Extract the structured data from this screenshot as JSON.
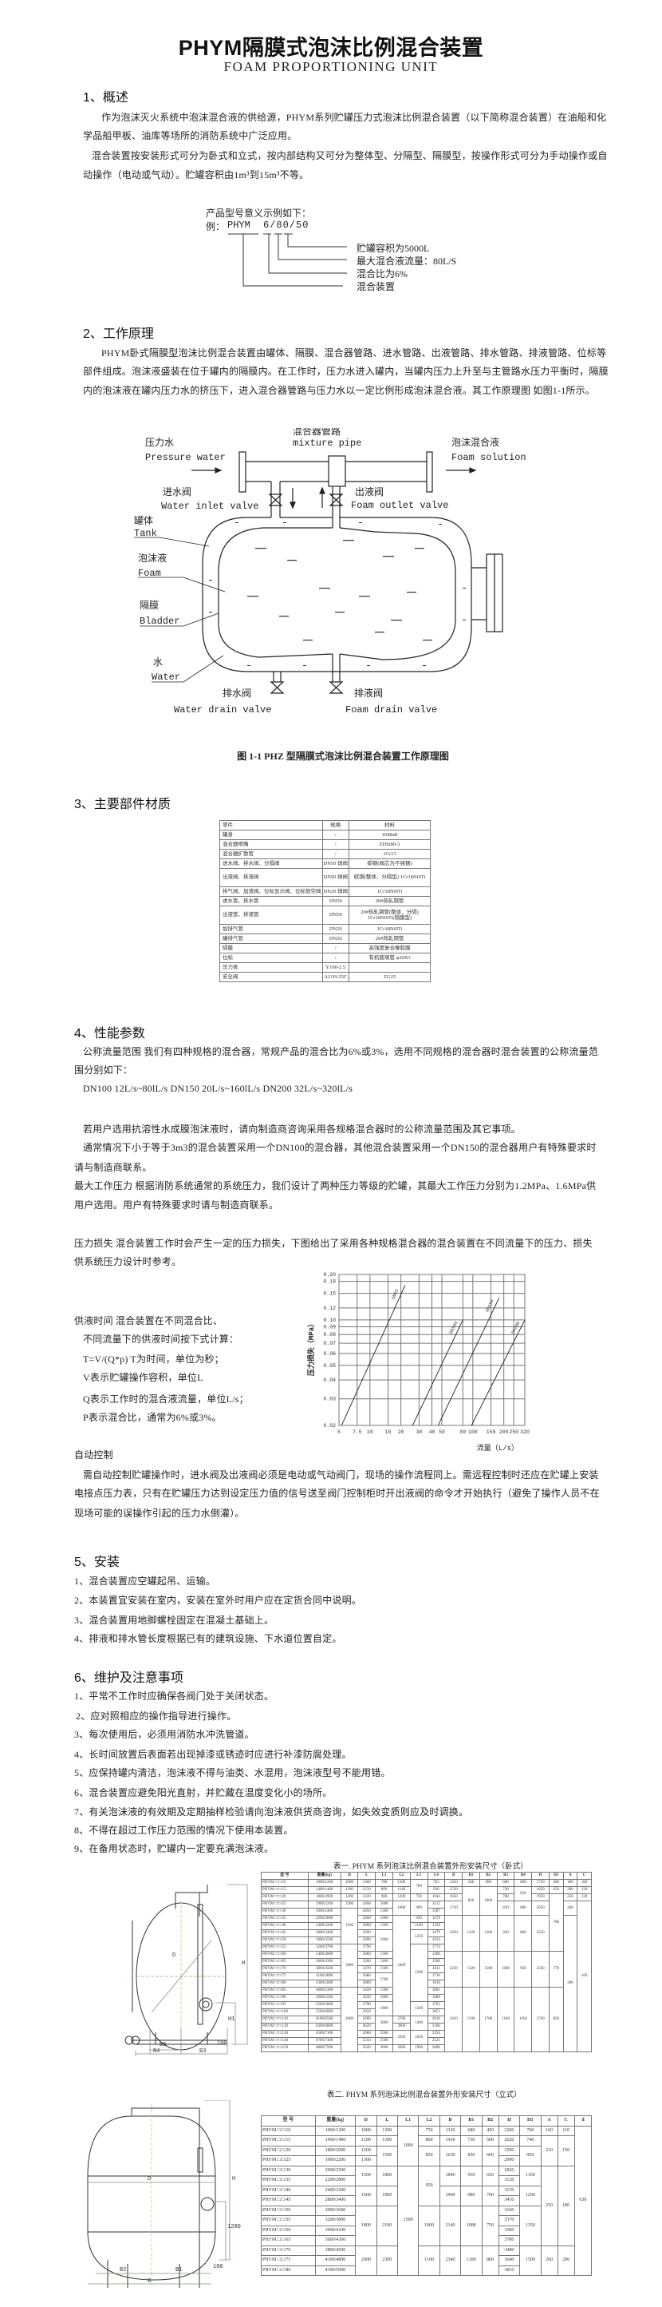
{
  "header": {
    "title": "PHYM隔膜式泡沫比例混合装置",
    "subtitle": "FOAM PROPORTIONING UNIT"
  },
  "s1": {
    "heading": "1、概述",
    "lines": [
      "作为泡沫灭火系统中泡沫混合液的供给源，PHYM系列贮罐压力式泡沫比例混合装置（以下简称混合装置）在油船和化",
      "学品船甲板、油库等场所的消防系统中广泛应用。",
      "混合装置按安装形式可分为卧式和立式，按内部结构又可分为整体型、分隔型、隔膜型，按操作形式可分为手动操作或自",
      "动操作（电动或气动）。贮罐容积由1m³到15m³不等。"
    ],
    "model": {
      "intro": "产品型号意义示例如下：",
      "prefix": "例：",
      "code_a": "PHYM",
      "code_b": "6/80/50",
      "labels": [
        "贮罐容积为5000L",
        "最大混合液流量：80L/S",
        "混合比为6%",
        "混合装置"
      ]
    }
  },
  "s2": {
    "heading": "2、工作原理",
    "lines": [
      "PHYM卧式隔膜型泡沫比例混合装置由罐体、隔膜、混合器管路、进水管路、出液管路、排水管路、排液管路、位标等",
      "部件组成。泡沫液盛装在位于罐内的隔膜内。在工作时，压力水进入罐内，当罐内压力上升至与主管路水压力平衡时，隔膜",
      "内的泡沫液在罐内压力水的挤压下，进入混合器管路与压力水以一定比例形成泡沫混合液。其工作原理图 如图1-1所示。"
    ],
    "diagram": {
      "pressure_water_cn": "压力水",
      "pressure_water_en": "Pressure water",
      "mixture_pipe_cn": "混合器管路",
      "mixture_pipe_en": "mixture pipe",
      "foam_solution_cn": "泡沫混合液",
      "foam_solution_en": "Foam solution",
      "inlet_valve_cn": "进水阀",
      "inlet_valve_en": "Water inlet valve",
      "outlet_valve_cn": "出液阀",
      "outlet_valve_en": "Foam outlet valve",
      "tank_cn": "罐体",
      "tank_en": "Tank",
      "foam_cn": "泡沫液",
      "foam_en": "Foam",
      "bladder_cn": "隔膜",
      "bladder_en": "Bladder",
      "water_cn": "水",
      "water_en": "Water",
      "water_drain_cn": "排水阀",
      "water_drain_en": "Water drain valve",
      "foam_drain_cn": "排液阀",
      "foam_drain_en": "Foam drain valve",
      "caption": "图 1-1 PHZ 型隔膜式泡沫比例混合装置工作原理图"
    }
  },
  "s3": {
    "heading": "3、主要部件材质",
    "table": {
      "header": [
        "零件",
        "规格",
        "材料"
      ],
      "rows": [
        [
          "罐身",
          "/",
          "16MnR"
        ],
        [
          "混合器喷嘴",
          "/",
          "ZHSi80-3"
        ],
        [
          "混合器扩散管",
          "/",
          "1Cr13"
        ],
        [
          "进水阀、排水阀、分隔阀",
          "DN50 球阀",
          "碳钢(阀芯为不锈钢)"
        ],
        [
          "出液阀、排液阀",
          "DN50 球阀",
          "碳钢(整体、分隔型) 1Cr18Ni9Ti"
        ],
        [
          "排气阀、加液阀、位标显示阀、位标放空阀",
          "DN20 球阀",
          "1Cr18Ni9Ti"
        ],
        [
          "进水管、排水管",
          "DN50",
          "20#热轧钢管"
        ],
        [
          "出液管、排液管",
          "DN50",
          "20#热轧钢管(整体、分隔) 1Cr18Ni9Ti(隔膜型)"
        ],
        [
          "加排气管",
          "DN20",
          "1Cr18Ni9Ti"
        ],
        [
          "罐排气管",
          "DN20",
          "20#热轧钢管"
        ],
        [
          "隔膜",
          "/",
          "高强度复合橡胶膜"
        ],
        [
          "位标",
          "/",
          "有机玻璃管 φ20X3"
        ],
        [
          "压力表",
          "Y100-2.5",
          ""
        ],
        [
          "安全阀",
          "A21H-25C",
          "ZG25"
        ]
      ]
    }
  },
  "s4": {
    "heading": "4、性能参数",
    "flow_lines": [
      "公称流量范围  我们有四种规格的混合器，常规产品的混合比为6%或3%，选用不同规格的混合器时混合装置的公称流量范",
      "围分别如下：",
      "DN100  12L/s~80lL/s   DN150  20L/s~160lL/s   DN200  32L/s~320lL/s"
    ],
    "note_lines": [
      "若用户选用抗溶性水成膜泡沫液时，请向制造商咨询采用各规格混合器时的公称流量范围及其它事项。",
      "通常情况下小于等于3m3的混合装置采用一个DN100的混合器，其他混合装置采用一个DN150的混合器用户有特殊要求时",
      "请与制造商联系。"
    ],
    "pressure_lines": [
      "最大工作压力  根据消防系统通常的系统压力，我们设计了两种压力等级的贮罐，其最大工作压力分别为1.2MPa、1.6MPa供",
      "用户选用。用户有特殊要求时请与制造商联系。"
    ],
    "loss_lines": [
      "压力损失  混合装置工作时会产生一定的压力损失，下图给出了采用各种规格混合器的混合装置在不同流量下的压力、损失",
      "供系统压力设计时参考。"
    ],
    "supply_lines": [
      "供液时间  混合装置在不同混合比、",
      "不同流量下的供液时间按下式计算：",
      "T=V/(Q*p)     T为时间，单位为秒；",
      "V表示贮罐操作容积，单位L",
      "Q表示工作时的混合液流量，单位L/s；",
      "P表示混合比，通常为6%或3%。"
    ],
    "auto_heading": "自动控制",
    "auto_lines": [
      "需自动控制贮罐操作时，进水阀及出液阀必须是电动或气动阀门，现场的操作流程同上。需远程控制时还应在贮罐上安装",
      "电接点压力表，只有在贮罐压力达到设定压力值的信号送至阀门控制柜时开出液阀的命令才开始执行（避免了操作人员不在",
      "现场可能的误操作引起的压力水倒灌）。"
    ]
  },
  "chart_data": {
    "type": "line",
    "xlabel": "流量（L/s）",
    "ylabel": "压力损失（MPa）",
    "x_scale": "log",
    "y_scale": "log",
    "xlim": [
      5,
      320
    ],
    "ylim": [
      0.02,
      0.2
    ],
    "x_ticks": [
      "5",
      "7.5",
      "10",
      "15",
      "20",
      "30",
      "40",
      "50",
      "80",
      "100",
      "150",
      "200",
      "250",
      "320"
    ],
    "x_tick_values": [
      5,
      7.5,
      10,
      15,
      20,
      30,
      40,
      50,
      80,
      100,
      150,
      200,
      250,
      320
    ],
    "y_ticks": [
      "0.02",
      "0.03",
      "0.04",
      "0.05",
      "0.06",
      "0.07",
      "0.08",
      "0.09",
      "0.10",
      "0.12",
      "0.15",
      "0.18",
      "0.20"
    ],
    "y_tick_values": [
      0.02,
      0.03,
      0.04,
      0.05,
      0.06,
      0.07,
      0.08,
      0.09,
      0.1,
      0.12,
      0.15,
      0.18,
      0.2
    ],
    "grid": true,
    "series": [
      {
        "name": "DN65",
        "points": [
          [
            5.3,
            0.02
          ],
          [
            22,
            0.17
          ]
        ]
      },
      {
        "name": "DN100",
        "points": [
          [
            26,
            0.02
          ],
          [
            80,
            0.1
          ]
        ]
      },
      {
        "name": "DN150",
        "points": [
          [
            46,
            0.02
          ],
          [
            180,
            0.14
          ]
        ]
      },
      {
        "name": "DN200",
        "points": [
          [
            97,
            0.02
          ],
          [
            320,
            0.1
          ]
        ]
      }
    ]
  },
  "s5": {
    "heading": "5、安装",
    "items": [
      "1、混合装置应空罐起吊、运输。",
      "2、本装置宜安装在室内，安装在室外时用户应在定货合同中说明。",
      "3、混合装置用地脚螺栓固定在混凝土基础上。",
      "4、排液和排水管长度根据已有的建筑设施、下水道位置自定。"
    ]
  },
  "s6": {
    "heading": "6、维护及注意事项",
    "items": [
      "1、平常不工作时应确保各阀门处于关闭状态。",
      "2、应对照相应的操作指导进行操作。",
      "3、每次使用后，必须用消防水冲洗管道。",
      "4、长时间放置后表面若出现掉漆或锈迹时应进行补漆防腐处理。",
      "5、应保持罐内清洁，泡沫液不得与油类、水混用，泡沫液型号不能用错。",
      "6、混合装置应避免阳光直射，并贮藏在温度变化小的场所。",
      "7、有关泡沫液的有效期及定期抽样检验请向泡沫液供货商咨询，如失效变质则应及时调换。",
      "8、不得在超过工作压力范围的情况下使用本装置。",
      "9、在备用状态时，贮罐内一定要充满泡沫液。"
    ]
  },
  "table1": {
    "caption": "表一. PHYM 系列泡沫比例混合装置外形安装尺寸（卧式）",
    "drawing_labels": [
      "D",
      "H",
      "H1",
      "B",
      "B3",
      "B4",
      "B5",
      "100"
    ],
    "header": [
      "型  号",
      "重量(kg)",
      "D",
      "L",
      "L1",
      "L2",
      "L3",
      "L4",
      "B",
      "B1",
      "B2",
      "B3",
      "B4",
      "H",
      "H1",
      "A",
      "C"
    ],
    "rows": [
      [
        "PHYM □/□/10",
        "1000/1200",
        "1000",
        "1360",
        "700",
        "1100",
        "700",
        "763",
        "1450",
        "240",
        "900",
        "680",
        "600",
        "1750",
        "600",
        "180",
        "100"
      ],
      [
        "PHYM □/□/15",
        "1400/1400",
        "1100",
        "2150",
        "800",
        "1140",
        null,
        "930",
        "1550",
        "820",
        "1000",
        "730",
        "650",
        "1850",
        "650",
        "200",
        "120"
      ],
      [
        "PHYM □/□/20",
        "1800/2000",
        "1200",
        "2320",
        "900",
        "1200",
        "750",
        "1042",
        "1650",
        null,
        null,
        "780",
        null,
        "1950",
        "700",
        "250",
        "130"
      ],
      [
        "PHYM □/□/25",
        "1900/2200",
        "1300",
        "2460",
        "1000",
        "1600",
        "900",
        "1112",
        "1750",
        null,
        null,
        "830",
        "680",
        "2050",
        null,
        "260",
        "160"
      ],
      [
        "PHYM □/□/30",
        "2000/2400",
        "1500",
        "2850",
        "1300",
        null,
        null,
        "1307",
        null,
        null,
        null,
        null,
        null,
        null,
        null,
        null,
        null
      ],
      [
        "PHYM □/□/35",
        "2200/2800",
        null,
        "2600",
        "1000",
        "2400",
        "950",
        "1179",
        "1950",
        "1120",
        "1300",
        "930",
        "800",
        "2250",
        null,
        "280",
        null
      ],
      [
        "PHYM □/□/40",
        "2400/3200",
        null,
        "2900",
        "1300",
        null,
        "1100",
        "1329",
        null,
        null,
        null,
        null,
        null,
        null,
        null,
        null,
        null
      ],
      [
        "PHYM □/□/45",
        "2800/3400",
        null,
        "3200",
        "1600",
        null,
        "1250",
        "1479",
        null,
        null,
        null,
        null,
        null,
        null,
        null,
        null,
        null
      ],
      [
        "PHYM □/□/50",
        "3000/3500",
        null,
        "3490",
        null,
        null,
        null,
        "1624",
        null,
        null,
        null,
        null,
        null,
        null,
        null,
        null,
        null
      ],
      [
        "PHYM □/□/55",
        "3200/3700",
        "1800",
        "3790",
        null,
        null,
        "1200",
        "1774",
        null,
        null,
        null,
        null,
        null,
        null,
        null,
        null,
        null
      ],
      [
        "PHYM □/□/60",
        "3400/4000",
        null,
        "3060",
        "1300",
        null,
        null,
        "1406",
        "2250",
        "1320",
        "1500",
        "1080",
        "950",
        "2560",
        "770",
        null,
        null
      ],
      [
        "PHYM □/□/65",
        "3600/4300",
        null,
        "3260",
        "1400",
        null,
        null,
        "1506",
        null,
        null,
        null,
        null,
        null,
        null,
        null,
        null,
        null
      ],
      [
        "PHYM □/□/70",
        "3800/4500",
        null,
        "3470",
        "1500",
        null,
        null,
        "1611",
        null,
        null,
        null,
        null,
        null,
        null,
        null,
        null,
        null
      ],
      [
        "PHYM □/□/75",
        "4100/4800",
        null,
        "3680",
        "1700",
        null,
        null,
        "1716",
        null,
        null,
        null,
        null,
        null,
        null,
        null,
        null,
        null
      ],
      [
        "PHYM □/□/80",
        "4300/5000",
        null,
        "3880",
        null,
        null,
        null,
        "1816",
        null,
        null,
        null,
        null,
        null,
        null,
        null,
        null,
        null
      ],
      [
        "PHYM □/□/85",
        "4600/5300",
        "2000",
        "3450",
        "1500",
        null,
        null,
        "1601",
        "2450",
        "1500",
        "1700",
        "1180",
        "1050",
        "2760",
        "850",
        null,
        null
      ],
      [
        "PHYM □/□/90",
        "4900/5500",
        null,
        "3630",
        "1600",
        null,
        null,
        "1686",
        null,
        null,
        null,
        null,
        null,
        null,
        null,
        null,
        null
      ],
      [
        "PHYM □/□/95",
        "5200/5800",
        null,
        "3790",
        "1800",
        null,
        "1500",
        "1765",
        null,
        null,
        null,
        null,
        null,
        null,
        null,
        null,
        null
      ],
      [
        "PHYM □/□/100",
        "5500/6000",
        null,
        "3950",
        null,
        null,
        null,
        "1851",
        null,
        null,
        null,
        null,
        null,
        null,
        null,
        null,
        null
      ],
      [
        "PHYM □/□/110",
        "6100/6500",
        null,
        "4280",
        "2000",
        "2700",
        "1400",
        "2016",
        null,
        null,
        null,
        null,
        null,
        null,
        null,
        null,
        null
      ],
      [
        "PHYM □/□/120",
        "6300/6800",
        null,
        "4620",
        null,
        "3000",
        null,
        "2186",
        null,
        null,
        null,
        null,
        null,
        null,
        null,
        null,
        null
      ],
      [
        "PHYM □/□/130",
        "6500/7100",
        null,
        "4960",
        "2500",
        "3200",
        "1650",
        "2356",
        null,
        null,
        null,
        null,
        null,
        null,
        null,
        null,
        null
      ],
      [
        "PHYM □/□/140",
        "6700/7400",
        null,
        "5250",
        "2500",
        null,
        null,
        "2521",
        null,
        null,
        null,
        null,
        null,
        null,
        null,
        null,
        null
      ],
      [
        "PHYM □/□/150",
        "6800/7500",
        null,
        "5620",
        "3000",
        "3600",
        "1900",
        "2686",
        null,
        null,
        null,
        null,
        null,
        null,
        null,
        null,
        null
      ]
    ]
  },
  "table2": {
    "caption": "表二. PHYM 系列泡沫比例混合装置外形安装尺寸（立式）",
    "drawing_labels": [
      "D",
      "H",
      "B",
      "B1",
      "B2",
      "1200",
      "100"
    ],
    "header": [
      "型  号",
      "重量(kg)",
      "D",
      "L",
      "L1",
      "L2",
      "B",
      "B1",
      "B2",
      "H",
      "H1",
      "A",
      "C",
      "d"
    ],
    "rows": [
      [
        "PHYM □/□/10",
        "1000/1200",
        "1000",
        "1290",
        "1000",
        "750",
        "1330",
        "680",
        "450",
        "2290",
        "700",
        "160",
        "110",
        "630"
      ],
      [
        "PHYM □/□/15",
        "1400/1400",
        "1100",
        "1390",
        null,
        "800",
        "1430",
        "730",
        "500",
        "2620",
        "740",
        "210",
        "150",
        null
      ],
      [
        "PHYM □/□/20",
        "1800/2000",
        "1200",
        "1590",
        null,
        "850",
        "1630",
        "830",
        "600",
        "2590",
        "950",
        null,
        null,
        null
      ],
      [
        "PHYM □/□/25",
        "1900/2200",
        "1300",
        null,
        null,
        null,
        null,
        null,
        null,
        "2990",
        null,
        null,
        null,
        null
      ],
      [
        "PHYM □/□/30",
        "2000/2500",
        "1500",
        "1800",
        "1500",
        "950",
        "1840",
        "930",
        "650",
        "2820",
        "1100",
        "250",
        "180",
        null
      ],
      [
        "PHYM □/□/35",
        "2200/2800",
        null,
        null,
        null,
        null,
        null,
        null,
        null,
        "3120",
        null,
        null,
        null,
        null
      ],
      [
        "PHYM □/□/40",
        "2400/3200",
        "1600",
        "1900",
        null,
        null,
        "1940",
        "980",
        "700",
        "3150",
        "1200",
        null,
        null,
        null
      ],
      [
        "PHYM □/□/45",
        "2800/3400",
        null,
        null,
        null,
        null,
        null,
        null,
        null,
        "3410",
        null,
        null,
        null,
        null
      ],
      [
        "PHYM □/□/50",
        "3000/3600",
        "1800",
        "2100",
        null,
        "1000",
        "2140",
        "1080",
        "750",
        "3160",
        "1350",
        null,
        null,
        null
      ],
      [
        "PHYM □/□/55",
        "3200/3800",
        null,
        null,
        null,
        null,
        null,
        null,
        null,
        "3370",
        null,
        null,
        null,
        null
      ],
      [
        "PHYM □/□/60",
        "3400/4100",
        null,
        null,
        null,
        null,
        null,
        null,
        null,
        "3580",
        null,
        null,
        null,
        null
      ],
      [
        "PHYM □/□/65",
        "3600/4300",
        null,
        null,
        null,
        null,
        null,
        null,
        null,
        "3780",
        null,
        null,
        null,
        null
      ],
      [
        "PHYM □/□/70",
        "3800/4500",
        "2000",
        "2300",
        null,
        "1100",
        "2340",
        "1180",
        "800",
        "3480",
        "1500",
        "260",
        "200",
        null
      ],
      [
        "PHYM □/□/75",
        "4100/4800",
        null,
        null,
        null,
        null,
        null,
        null,
        null,
        "3640",
        null,
        null,
        null,
        null
      ],
      [
        "PHYM □/□/80",
        "4300/5000",
        null,
        null,
        null,
        null,
        null,
        null,
        null,
        "3810",
        null,
        null,
        null,
        null
      ]
    ]
  }
}
